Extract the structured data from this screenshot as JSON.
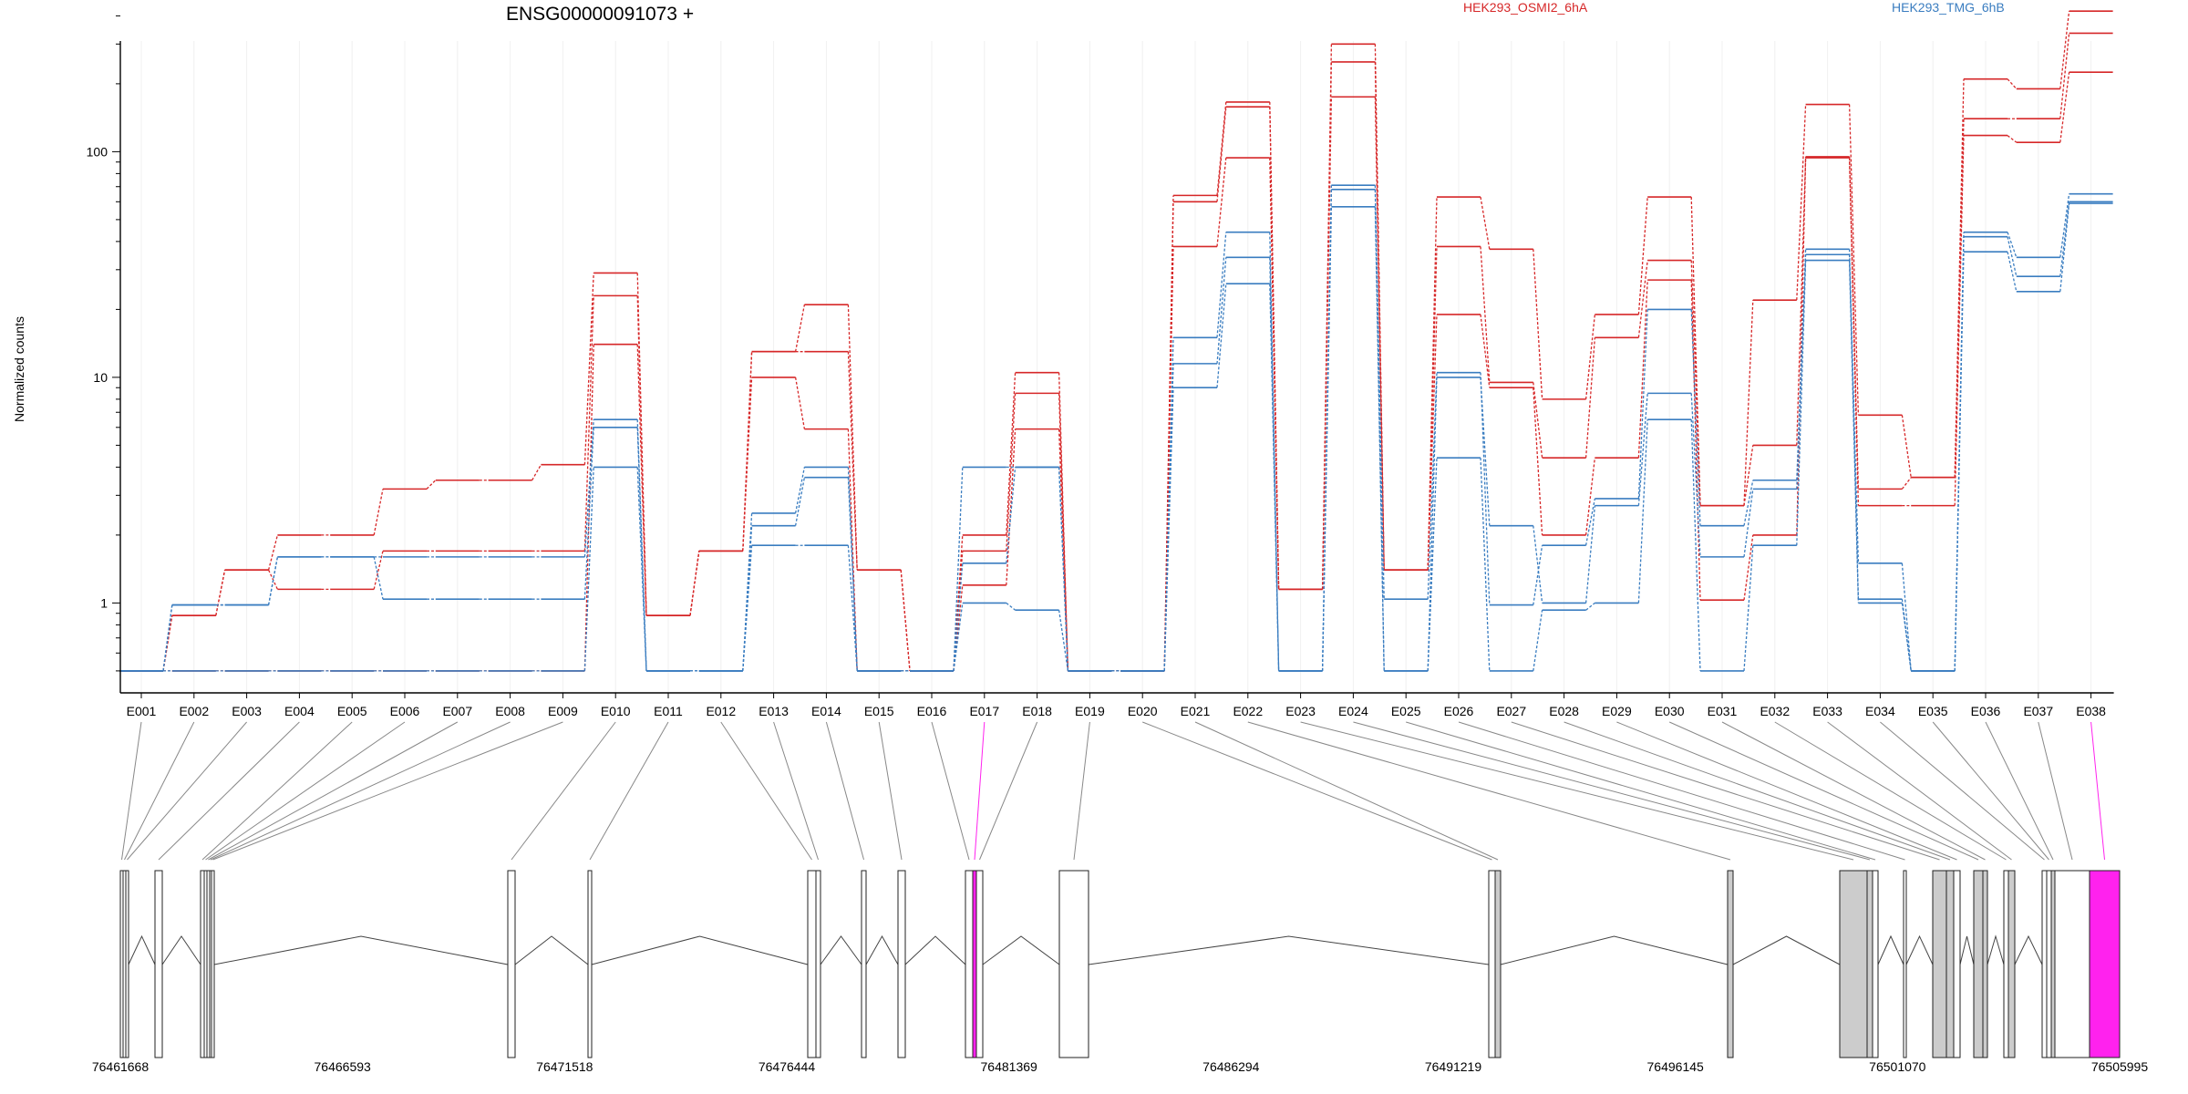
{
  "chart_data": {
    "type": "line",
    "title": "ENSG00000091073 +",
    "ylabel": "Normalized counts",
    "yscale": "log",
    "ylim": [
      0.5,
      600
    ],
    "y_ticks": [
      1,
      10,
      100
    ],
    "y_tick_labels": [
      "1",
      "10",
      "100"
    ],
    "categories": [
      "E001",
      "E002",
      "E003",
      "E004",
      "E005",
      "E006",
      "E007",
      "E008",
      "E009",
      "E010",
      "E011",
      "E012",
      "E013",
      "E014",
      "E015",
      "E016",
      "E017",
      "E018",
      "E019",
      "E020",
      "E021",
      "E022",
      "E023",
      "E024",
      "E025",
      "E026",
      "E027",
      "E028",
      "E029",
      "E030",
      "E031",
      "E032",
      "E033",
      "E034",
      "E035",
      "E036",
      "E037",
      "E038"
    ],
    "legend": [
      {
        "name": "HEK293_OSMI2_6hA",
        "color": "#d62728"
      },
      {
        "name": "HEK293_TMG_6hB",
        "color": "#3a7dc0"
      }
    ],
    "series": [
      {
        "group": "HEK293_OSMI2_6hA",
        "color": "#d62728",
        "values": [
          0.5,
          0.5,
          0.5,
          0.5,
          0.5,
          0.5,
          0.5,
          0.5,
          0.5,
          14,
          0.88,
          1.7,
          10,
          5.9,
          0.5,
          0.5,
          1.2,
          5.9,
          0.5,
          0.5,
          38,
          94,
          1.15,
          175,
          1.4,
          19,
          9,
          2,
          4.4,
          27,
          1.03,
          2,
          94,
          2.7,
          2.7,
          118,
          110,
          225
        ]
      },
      {
        "group": "HEK293_OSMI2_6hA",
        "color": "#d62728",
        "values": [
          0.5,
          0.88,
          1.4,
          1.15,
          1.15,
          1.7,
          1.7,
          1.7,
          1.7,
          23,
          0.88,
          1.7,
          13,
          13,
          1.4,
          0.5,
          1.7,
          8.5,
          0.5,
          0.5,
          60,
          158,
          1.15,
          250,
          1.4,
          38,
          9.5,
          4.4,
          15,
          33,
          2.7,
          5,
          95,
          3.2,
          3.6,
          140,
          140,
          335
        ]
      },
      {
        "group": "HEK293_OSMI2_6hA",
        "color": "#d62728",
        "values": [
          0.5,
          0.88,
          1.4,
          2,
          2,
          3.2,
          3.5,
          3.5,
          4.1,
          29,
          0.88,
          1.7,
          13,
          21,
          1.4,
          0.5,
          2,
          10.5,
          0.5,
          0.5,
          64,
          166,
          1.15,
          300,
          1.4,
          63,
          37,
          8,
          19,
          63,
          2.7,
          22,
          162,
          6.8,
          3.6,
          210,
          190,
          420
        ]
      },
      {
        "group": "HEK293_TMG_6hB",
        "color": "#3a7dc0",
        "values": [
          0.5,
          0.5,
          0.5,
          0.5,
          0.5,
          0.5,
          0.5,
          0.5,
          0.5,
          4,
          0.5,
          0.5,
          1.8,
          1.8,
          0.5,
          0.5,
          1,
          0.93,
          0.5,
          0.5,
          9,
          26,
          0.5,
          57,
          0.5,
          4.4,
          0.5,
          0.93,
          1,
          6.5,
          0.5,
          1.8,
          33,
          1,
          0.5,
          36,
          24,
          59
        ]
      },
      {
        "group": "HEK293_TMG_6hB",
        "color": "#3a7dc0",
        "values": [
          0.5,
          0.98,
          0.98,
          1.6,
          1.6,
          1.04,
          1.04,
          1.04,
          1.04,
          6,
          0.5,
          0.5,
          2.2,
          3.6,
          0.5,
          0.5,
          1.5,
          4,
          0.5,
          0.5,
          11.5,
          34,
          0.5,
          68,
          0.5,
          10,
          2.2,
          1,
          2.7,
          8.5,
          1.6,
          3.2,
          35,
          1.04,
          0.5,
          42,
          28,
          60
        ]
      },
      {
        "group": "HEK293_TMG_6hB",
        "color": "#3a7dc0",
        "values": [
          0.5,
          0.98,
          0.98,
          1.6,
          1.6,
          1.6,
          1.6,
          1.6,
          1.6,
          6.5,
          0.5,
          0.5,
          2.5,
          4,
          0.5,
          0.5,
          4,
          4,
          0.5,
          0.5,
          15,
          44,
          0.5,
          71,
          1.04,
          10.5,
          0.98,
          1.8,
          2.9,
          20,
          2.2,
          3.5,
          37,
          1.5,
          0.5,
          44,
          34,
          65
        ]
      }
    ],
    "gene_model": {
      "coordinate_labels": [
        "76461668",
        "76466593",
        "76471518",
        "76476444",
        "76481369",
        "76486294",
        "76491219",
        "76496145",
        "76501070",
        "76505995"
      ],
      "exon_fills": [
        "#ffffff",
        "#ffffff",
        "#ffffff",
        "#ffffff",
        "#ffffff",
        "#ffffff",
        "#ffffff",
        "#ffffff",
        "#ffffff",
        "#ffffff",
        "#ffffff",
        "#ffffff",
        "#ffffff",
        "#ffffff",
        "#ffffff",
        "#ffffff",
        "#ff22ee",
        "#ffffff",
        "#ffffff",
        "#ffffff",
        "#cccccc",
        "#cccccc",
        "#cccccc",
        "#cccccc",
        "#ffffff",
        "#ffffff",
        "#cccccc",
        "#cccccc",
        "#ffffff",
        "#cccccc",
        "#cccccc",
        "#ffffff",
        "#cccccc",
        "#ffffff",
        "#ffffff",
        "#cccccc",
        "#ffffff",
        "#ff22ee"
      ]
    },
    "colors": {
      "osmi": "#d62728",
      "tmg": "#3a7dc0",
      "highlight_exon": "#ff22ee",
      "default_exon": "#cccccc"
    }
  }
}
